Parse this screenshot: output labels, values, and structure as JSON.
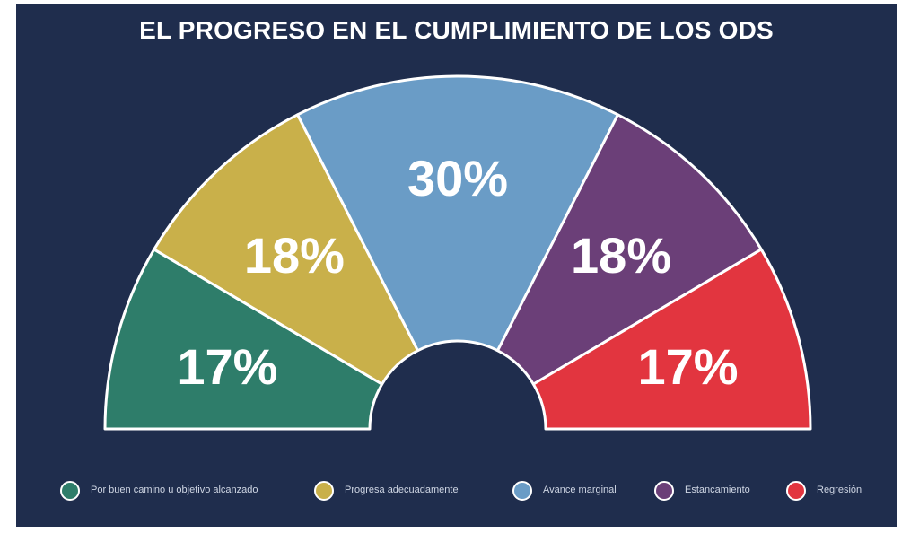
{
  "title": "EL PROGRESO EN EL CUMPLIMIENTO DE LOS ODS",
  "colors": {
    "background": "#1f2d4d",
    "text": "#ffffff"
  },
  "chart_data": {
    "type": "pie",
    "variant": "half-donut",
    "title": "EL PROGRESO EN EL CUMPLIMIENTO DE LOS ODS",
    "legend_position": "bottom",
    "series": [
      {
        "name": "Por buen camino u objetivo alcanzado",
        "value": 17,
        "label": "17%",
        "color": "#2e7d6a"
      },
      {
        "name": "Progresa adecuadamente",
        "value": 18,
        "label": "18%",
        "color": "#c9b04a"
      },
      {
        "name": "Avance marginal",
        "value": 30,
        "label": "30%",
        "color": "#6a9cc6"
      },
      {
        "name": "Estancamiento",
        "value": 18,
        "label": "18%",
        "color": "#6b3f78"
      },
      {
        "name": "Regresión",
        "value": 17,
        "label": "17%",
        "color": "#e2353f"
      }
    ]
  }
}
